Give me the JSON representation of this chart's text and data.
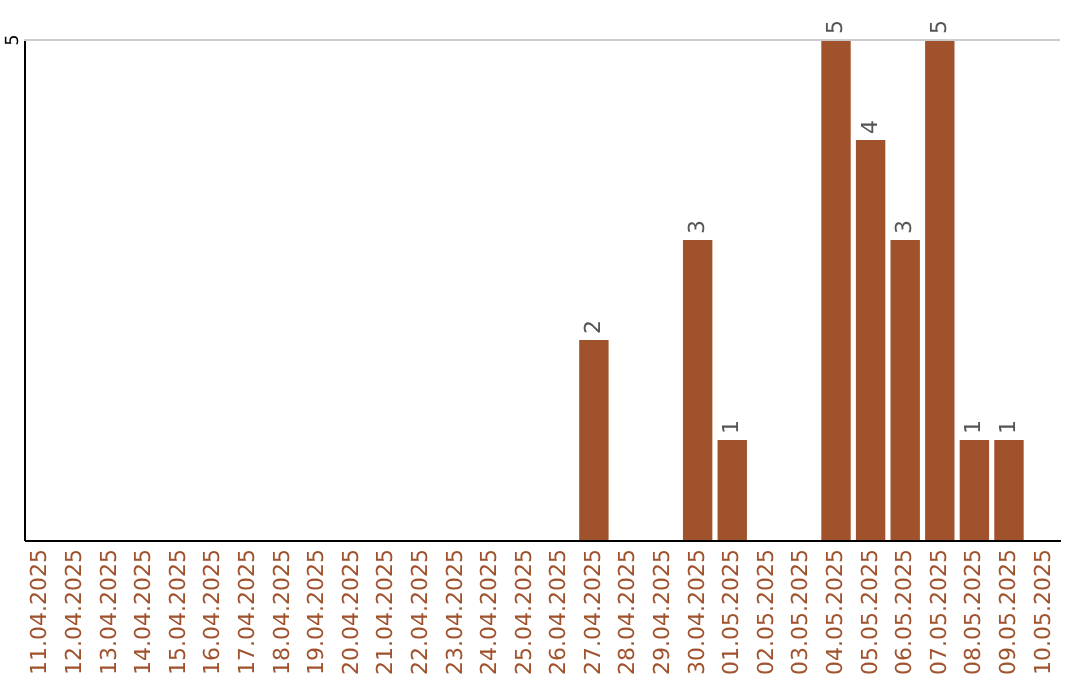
{
  "chart_data": {
    "type": "bar",
    "categories": [
      "11.04.2025",
      "12.04.2025",
      "13.04.2025",
      "14.04.2025",
      "15.04.2025",
      "16.04.2025",
      "17.04.2025",
      "18.04.2025",
      "19.04.2025",
      "20.04.2025",
      "21.04.2025",
      "22.04.2025",
      "23.04.2025",
      "24.04.2025",
      "25.04.2025",
      "26.04.2025",
      "27.04.2025",
      "28.04.2025",
      "29.04.2025",
      "30.04.2025",
      "01.05.2025",
      "02.05.2025",
      "03.05.2025",
      "04.05.2025",
      "05.05.2025",
      "06.05.2025",
      "07.05.2025",
      "08.05.2025",
      "09.05.2025",
      "10.05.2025"
    ],
    "values": [
      null,
      null,
      null,
      null,
      null,
      null,
      null,
      null,
      null,
      null,
      null,
      null,
      null,
      null,
      null,
      null,
      2,
      null,
      null,
      3,
      1,
      null,
      null,
      5,
      4,
      3,
      5,
      1,
      1,
      null
    ],
    "value_labels": [
      null,
      null,
      null,
      null,
      null,
      null,
      null,
      null,
      null,
      null,
      null,
      null,
      null,
      null,
      null,
      null,
      "2",
      null,
      null,
      "3",
      "1",
      null,
      null,
      "5",
      "4",
      "3",
      "5",
      "1",
      "1",
      null
    ],
    "color": "#a0522d",
    "ylim": [
      0,
      5
    ],
    "ref_lines": [
      {
        "axis": "y",
        "value": 5,
        "label": "5",
        "color": "#cccccc"
      }
    ]
  }
}
